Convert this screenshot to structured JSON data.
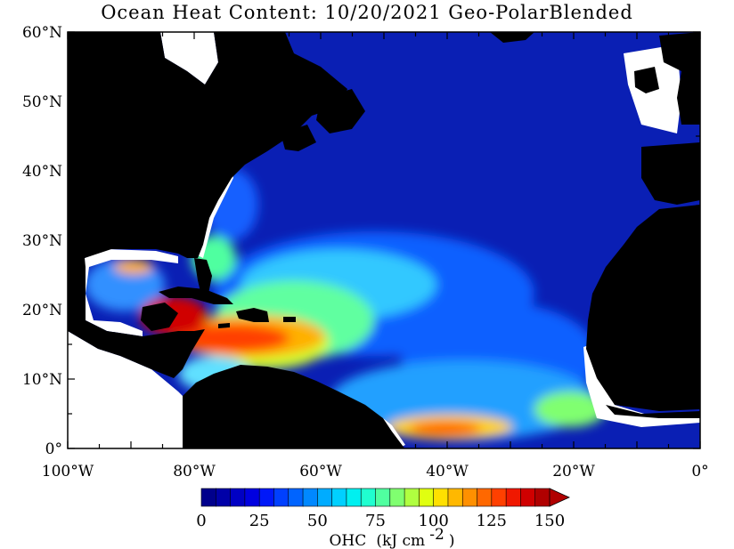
{
  "title": "Ocean Heat Content: 10/20/2021 Geo-PolarBlended",
  "map": {
    "lat_ticks": [
      {
        "value": 60,
        "label": "60°N"
      },
      {
        "value": 50,
        "label": "50°N"
      },
      {
        "value": 40,
        "label": "40°N"
      },
      {
        "value": 30,
        "label": "30°N"
      },
      {
        "value": 20,
        "label": "20°N"
      },
      {
        "value": 10,
        "label": "10°N"
      },
      {
        "value": 0,
        "label": "0°"
      }
    ],
    "lon_ticks": [
      {
        "value": -100,
        "label": "100°W"
      },
      {
        "value": -80,
        "label": "80°W"
      },
      {
        "value": -60,
        "label": "60°W"
      },
      {
        "value": -40,
        "label": "40°W"
      },
      {
        "value": -20,
        "label": "20°W"
      },
      {
        "value": 0,
        "label": "0°"
      }
    ],
    "lon_range": [
      -100,
      0
    ],
    "lat_range": [
      0,
      60
    ],
    "colors": {
      "land": "#000000",
      "no_data": "#ffffff",
      "ocean_low": "#0a1fb4"
    }
  },
  "colorbar": {
    "min": 0,
    "max": 150,
    "step": 6.25,
    "labels": [
      "0",
      "25",
      "50",
      "75",
      "100",
      "125",
      "150"
    ],
    "colors": [
      "#00008c",
      "#0000a8",
      "#0000c4",
      "#0000e0",
      "#0018f8",
      "#0040ff",
      "#0064ff",
      "#0088ff",
      "#00acff",
      "#00d0ff",
      "#00f0f0",
      "#20ffd0",
      "#50ffa0",
      "#80ff70",
      "#b0ff40",
      "#e0ff10",
      "#ffe000",
      "#ffb800",
      "#ff9000",
      "#ff6800",
      "#ff4000",
      "#f01800",
      "#d00000",
      "#b00000"
    ],
    "unit_prefix": "OHC",
    "unit_text": "(kJ cm",
    "unit_exp": "-2",
    "unit_close": ")"
  }
}
